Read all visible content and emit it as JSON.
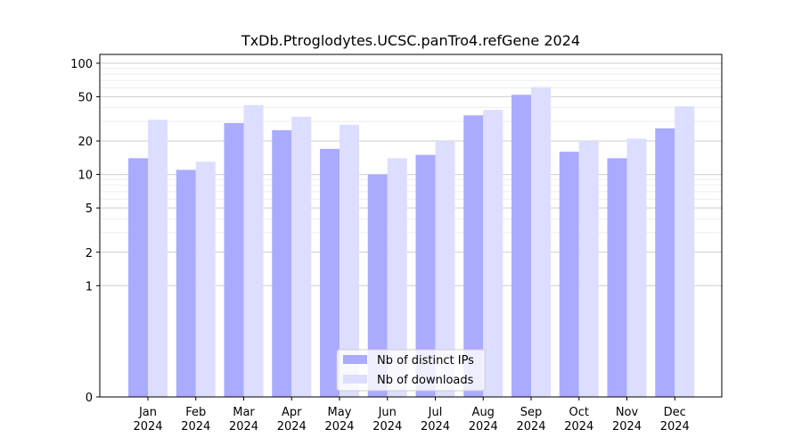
{
  "chart_data": {
    "type": "bar",
    "title": "TxDb.Ptroglodytes.UCSC.panTro4.refGene 2024",
    "xlabel": "",
    "ylabel": "",
    "yscale": "symlog",
    "yticks": [
      0,
      1,
      2,
      5,
      10,
      20,
      50,
      100
    ],
    "ytick_labels": [
      "0",
      "1",
      "2",
      "5",
      "10",
      "20",
      "50",
      "100"
    ],
    "ylim": [
      0,
      120
    ],
    "grid": true,
    "legend_position": "bottom-center",
    "categories": [
      {
        "month": "Jan",
        "year": "2024"
      },
      {
        "month": "Feb",
        "year": "2024"
      },
      {
        "month": "Mar",
        "year": "2024"
      },
      {
        "month": "Apr",
        "year": "2024"
      },
      {
        "month": "May",
        "year": "2024"
      },
      {
        "month": "Jun",
        "year": "2024"
      },
      {
        "month": "Jul",
        "year": "2024"
      },
      {
        "month": "Aug",
        "year": "2024"
      },
      {
        "month": "Sep",
        "year": "2024"
      },
      {
        "month": "Oct",
        "year": "2024"
      },
      {
        "month": "Nov",
        "year": "2024"
      },
      {
        "month": "Dec",
        "year": "2024"
      }
    ],
    "series": [
      {
        "name": "Nb of distinct IPs",
        "color": "#aaaaff",
        "values": [
          14,
          11,
          29,
          25,
          17,
          10,
          15,
          34,
          52,
          16,
          14,
          26
        ]
      },
      {
        "name": "Nb of downloads",
        "color": "#ddddff",
        "values": [
          31,
          13,
          42,
          33,
          28,
          14,
          20,
          38,
          61,
          20,
          21,
          41
        ]
      }
    ]
  }
}
